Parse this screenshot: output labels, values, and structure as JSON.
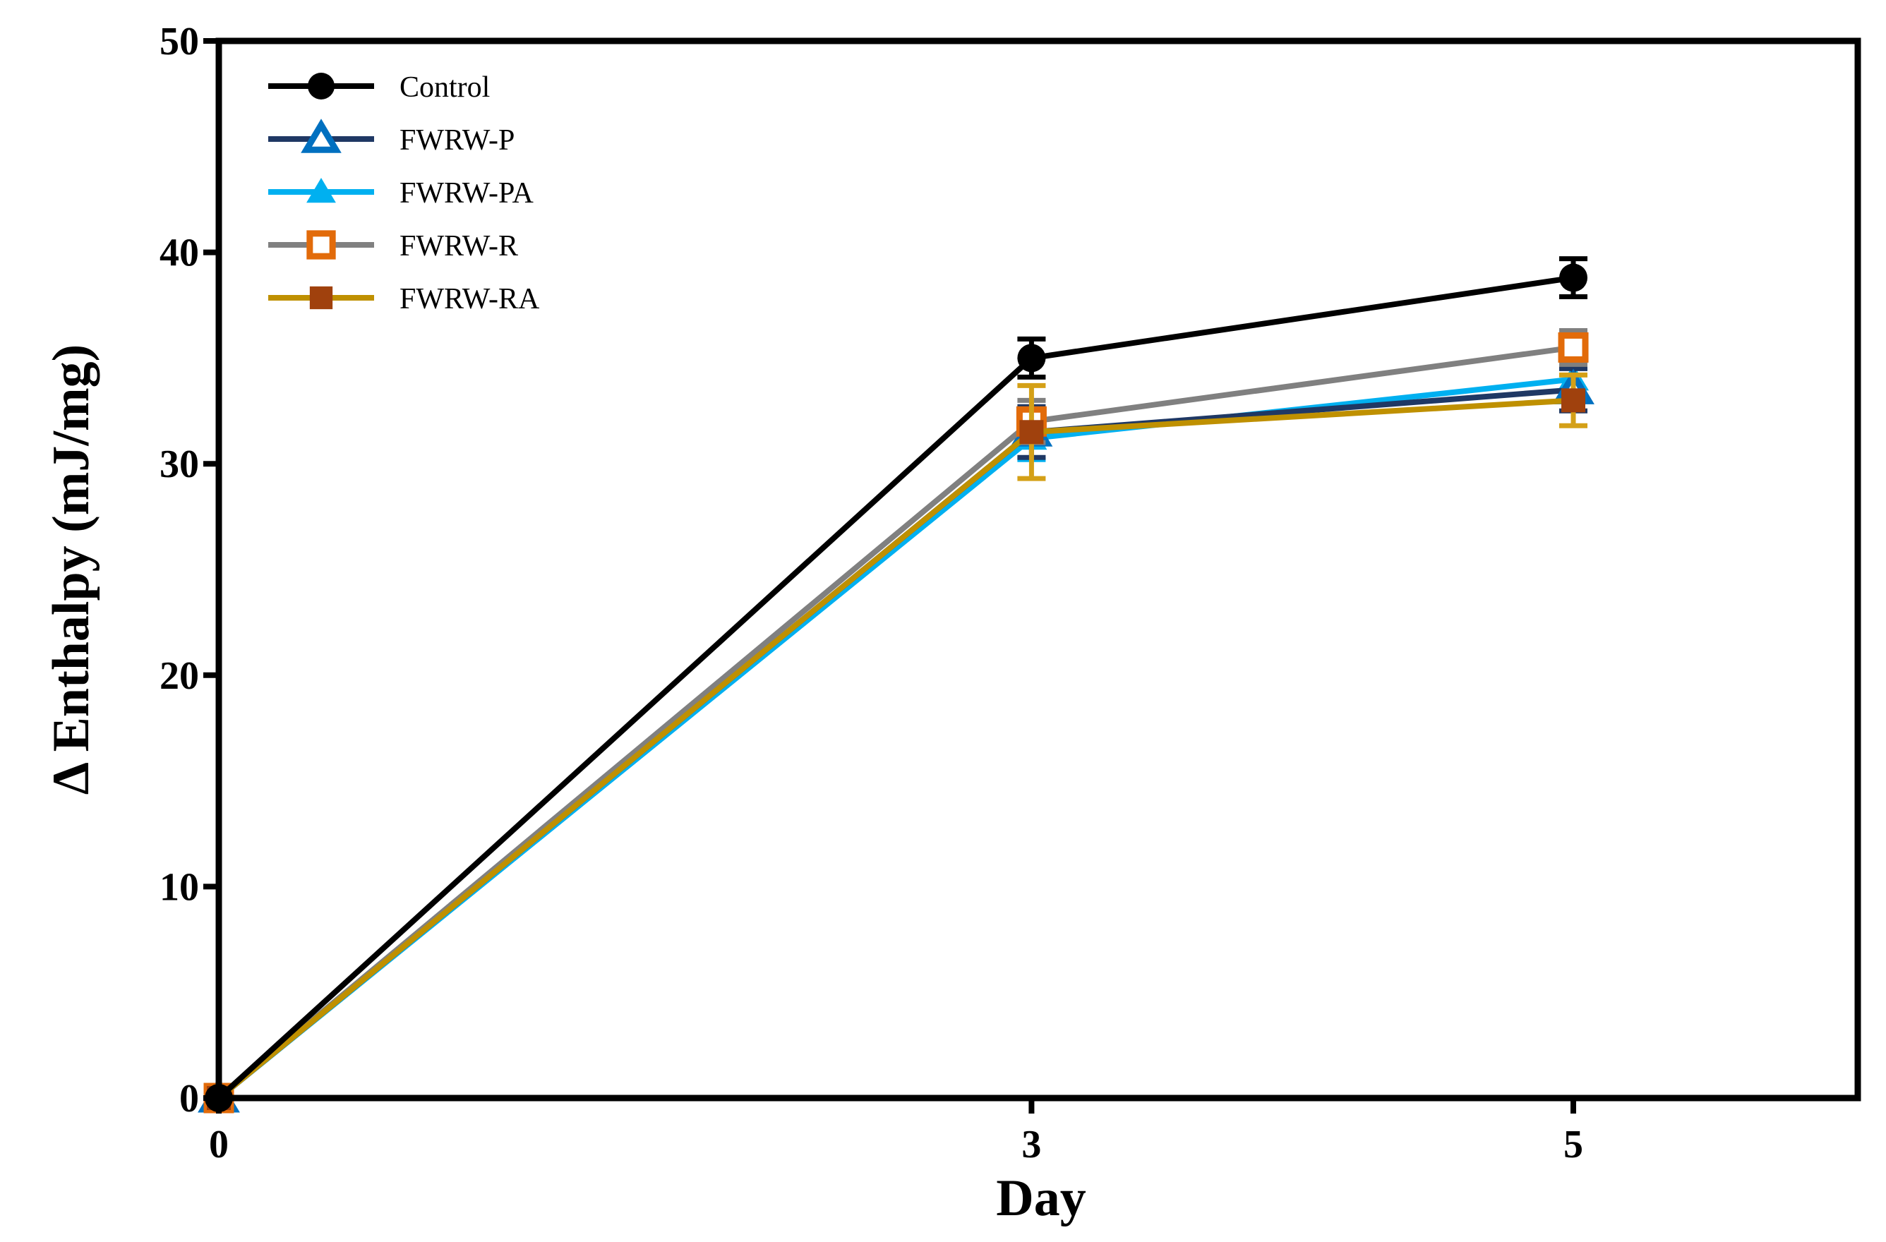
{
  "chart_data": {
    "type": "line",
    "title": "",
    "xlabel": "Day",
    "ylabel": "Δ Enthalpy (mJ/mg)",
    "xlim": [
      0,
      6.05
    ],
    "ylim": [
      0,
      50
    ],
    "xticks": [
      0,
      3,
      5
    ],
    "yticks": [
      0,
      10,
      20,
      30,
      40,
      50
    ],
    "grid": false,
    "legend_position": "top-left",
    "x": [
      0,
      3,
      5
    ],
    "series": [
      {
        "name": "FWRW-PA",
        "values": [
          0,
          31.2,
          34.0
        ],
        "errors": [
          0,
          1.0,
          1.0
        ],
        "color": "#00b0f0",
        "err_color": "#00b0f0",
        "marker": "triangle-filled",
        "marker_color": "#00b0f0"
      },
      {
        "name": "FWRW-P",
        "values": [
          0,
          31.5,
          33.5
        ],
        "errors": [
          0,
          1.2,
          1.0
        ],
        "color": "#1f3864",
        "err_color": "#1f3864",
        "marker": "triangle-open",
        "marker_color": "#0070c0"
      },
      {
        "name": "FWRW-R",
        "values": [
          0,
          32.0,
          35.5
        ],
        "errors": [
          0,
          1.0,
          0.8
        ],
        "color": "#808080",
        "err_color": "#808080",
        "marker": "square-open",
        "marker_color": "#e26b0a"
      },
      {
        "name": "FWRW-RA",
        "values": [
          0,
          31.5,
          33.0
        ],
        "errors": [
          0,
          2.2,
          1.2
        ],
        "color": "#bf9000",
        "err_color": "#d4a017",
        "marker": "square-filled",
        "marker_color": "#a0410d"
      },
      {
        "name": "Control",
        "values": [
          0,
          35.0,
          38.8
        ],
        "errors": [
          0,
          0.9,
          0.9
        ],
        "color": "#000000",
        "err_color": "#000000",
        "marker": "circle-filled",
        "marker_color": "#000000"
      }
    ],
    "legend_order": [
      "Control",
      "FWRW-P",
      "FWRW-PA",
      "FWRW-R",
      "FWRW-RA"
    ]
  }
}
